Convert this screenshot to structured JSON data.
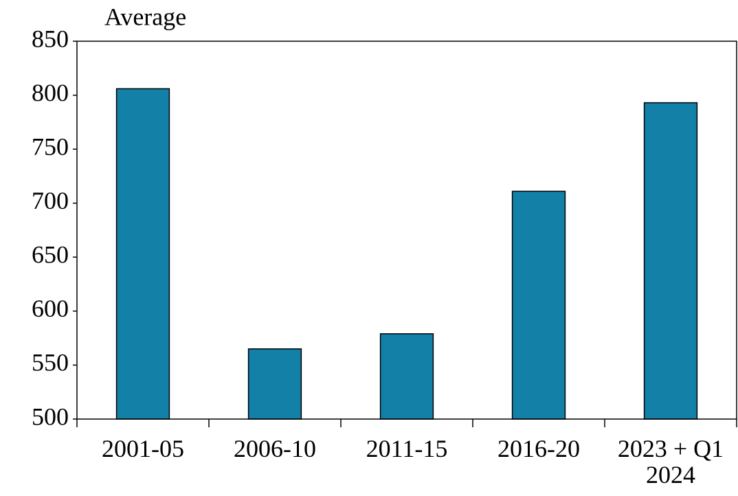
{
  "chart_data": {
    "type": "bar",
    "y_label": "Average",
    "categories": [
      "2001-05",
      "2006-10",
      "2011-15",
      "2016-20",
      "2023 + Q1 2024"
    ],
    "values": [
      806,
      565,
      579,
      711,
      793
    ],
    "color": "#1380a8",
    "ylim": [
      500,
      850
    ],
    "yticks": [
      500,
      550,
      600,
      650,
      700,
      750,
      800,
      850
    ],
    "grid": false
  }
}
